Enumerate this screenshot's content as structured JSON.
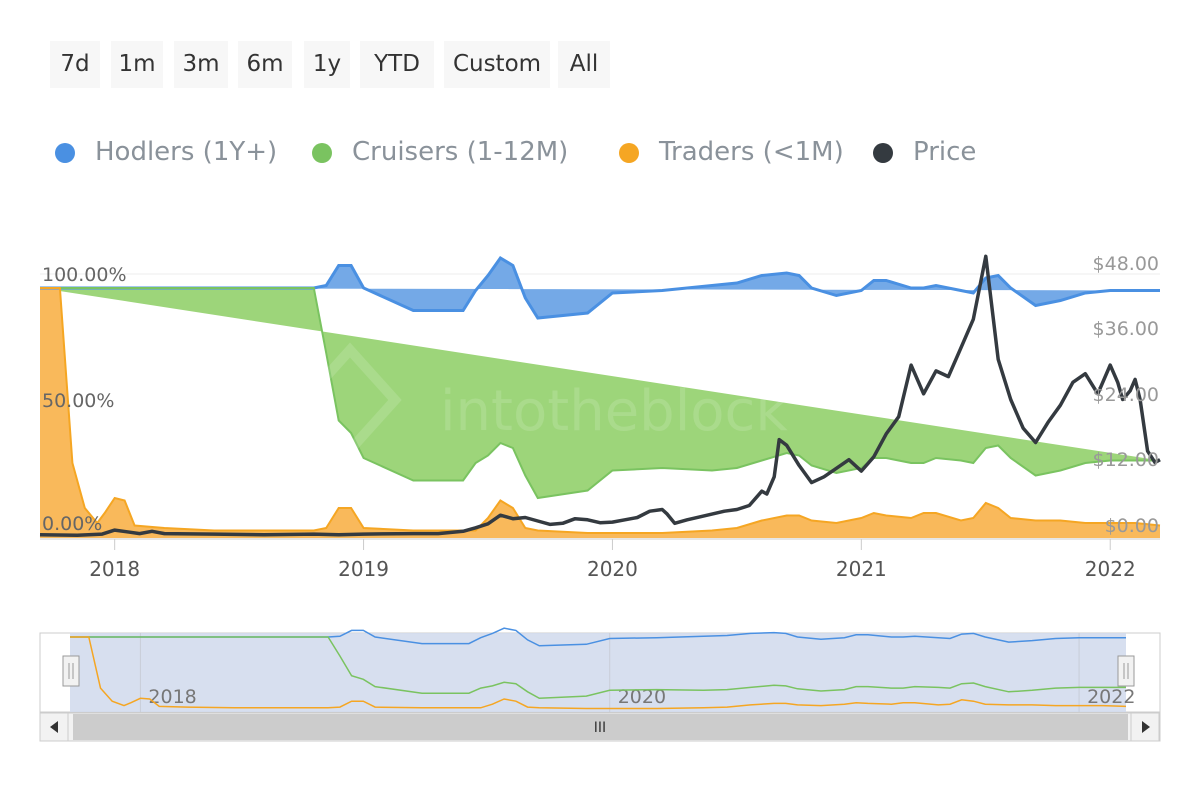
{
  "range_selector": {
    "buttons": [
      {
        "id": "7d",
        "label": "7d"
      },
      {
        "id": "1m",
        "label": "1m"
      },
      {
        "id": "3m",
        "label": "3m"
      },
      {
        "id": "6m",
        "label": "6m"
      },
      {
        "id": "1y",
        "label": "1y"
      },
      {
        "id": "ytd",
        "label": "YTD"
      },
      {
        "id": "custom",
        "label": "Custom"
      },
      {
        "id": "all",
        "label": "All"
      }
    ]
  },
  "legend": {
    "items": [
      {
        "id": "hodlers",
        "label": "Hodlers (1Y+)",
        "color": "#4a90e2"
      },
      {
        "id": "cruisers",
        "label": "Cruisers (1-12M)",
        "color": "#7ac360"
      },
      {
        "id": "traders",
        "label": "Traders (<1M)",
        "color": "#f5a623"
      },
      {
        "id": "price",
        "label": "Price",
        "color": "#343a40"
      }
    ]
  },
  "watermark": {
    "text": "intotheblock"
  },
  "colors": {
    "hodlers_fill": "#74a9e7",
    "hodlers_line": "#4a90e2",
    "cruisers_fill": "#9dd57a",
    "cruisers_line": "#7ac360",
    "traders_fill": "#f9b95b",
    "traders_line": "#f5a623",
    "price_line": "#343a40",
    "navigator_mask": "#d3dbed"
  },
  "chart_data": {
    "type": "area",
    "x_axis": {
      "ticks": [
        "2018",
        "2019",
        "2020",
        "2021",
        "2022"
      ],
      "range": [
        "2017-09",
        "2022-03"
      ]
    },
    "y_axis_left": {
      "ticks": [
        "0.00%",
        "50.00%",
        "100.00%"
      ],
      "range": [
        0,
        100
      ],
      "unit": "%"
    },
    "y_axis_right": {
      "ticks": [
        "$0.00",
        "$12.00",
        "$24.00",
        "$36.00",
        "$48.00"
      ],
      "range": [
        0,
        48
      ],
      "unit": "USD"
    },
    "stacking": "percent",
    "legend_placement": "top-left",
    "grid": false,
    "series": [
      {
        "name": "Traders (<1M)",
        "axis": "left",
        "points": [
          [
            2017.7,
            100
          ],
          [
            2017.78,
            100
          ],
          [
            2017.83,
            30
          ],
          [
            2017.88,
            12
          ],
          [
            2017.93,
            6
          ],
          [
            2017.96,
            10
          ],
          [
            2018.0,
            16
          ],
          [
            2018.04,
            15
          ],
          [
            2018.08,
            5
          ],
          [
            2018.2,
            4
          ],
          [
            2018.4,
            3
          ],
          [
            2018.6,
            3
          ],
          [
            2018.8,
            3
          ],
          [
            2018.85,
            4
          ],
          [
            2018.9,
            12
          ],
          [
            2018.95,
            12
          ],
          [
            2019.0,
            4
          ],
          [
            2019.2,
            3
          ],
          [
            2019.4,
            3
          ],
          [
            2019.45,
            3
          ],
          [
            2019.5,
            8
          ],
          [
            2019.55,
            15
          ],
          [
            2019.6,
            12
          ],
          [
            2019.65,
            4
          ],
          [
            2019.7,
            3
          ],
          [
            2019.9,
            2
          ],
          [
            2020.0,
            2
          ],
          [
            2020.2,
            2
          ],
          [
            2020.4,
            3
          ],
          [
            2020.5,
            4
          ],
          [
            2020.6,
            7
          ],
          [
            2020.7,
            9
          ],
          [
            2020.75,
            9
          ],
          [
            2020.8,
            7
          ],
          [
            2020.9,
            6
          ],
          [
            2021.0,
            8
          ],
          [
            2021.05,
            10
          ],
          [
            2021.1,
            9
          ],
          [
            2021.2,
            8
          ],
          [
            2021.25,
            10
          ],
          [
            2021.3,
            10
          ],
          [
            2021.4,
            7
          ],
          [
            2021.45,
            8
          ],
          [
            2021.5,
            14
          ],
          [
            2021.55,
            12
          ],
          [
            2021.6,
            8
          ],
          [
            2021.7,
            7
          ],
          [
            2021.8,
            7
          ],
          [
            2021.9,
            6
          ],
          [
            2022.0,
            6
          ],
          [
            2022.1,
            6
          ],
          [
            2022.2,
            5
          ]
        ]
      },
      {
        "name": "Cruisers (1-12M)",
        "axis": "left",
        "points": [
          [
            2017.7,
            0
          ],
          [
            2017.78,
            0
          ],
          [
            2017.83,
            70
          ],
          [
            2017.88,
            88
          ],
          [
            2017.93,
            94
          ],
          [
            2017.96,
            90
          ],
          [
            2018.0,
            84
          ],
          [
            2018.04,
            85
          ],
          [
            2018.08,
            95
          ],
          [
            2018.2,
            96
          ],
          [
            2018.4,
            97
          ],
          [
            2018.6,
            97
          ],
          [
            2018.65,
            97
          ],
          [
            2018.7,
            70
          ],
          [
            2018.75,
            35
          ],
          [
            2018.8,
            30
          ],
          [
            2018.85,
            28
          ],
          [
            2018.9,
            20
          ],
          [
            2018.95,
            20
          ],
          [
            2019.0,
            27
          ],
          [
            2019.2,
            25
          ],
          [
            2019.4,
            23
          ],
          [
            2019.45,
            24
          ],
          [
            2019.5,
            21
          ],
          [
            2019.55,
            13
          ],
          [
            2019.6,
            17
          ],
          [
            2019.65,
            25
          ],
          [
            2019.7,
            26
          ],
          [
            2019.9,
            24
          ],
          [
            2020.0,
            24
          ],
          [
            2020.2,
            24
          ],
          [
            2020.4,
            25
          ],
          [
            2020.5,
            24
          ],
          [
            2020.6,
            22
          ],
          [
            2020.7,
            20
          ],
          [
            2020.75,
            20
          ],
          [
            2020.8,
            22
          ],
          [
            2020.9,
            23
          ],
          [
            2021.0,
            22
          ],
          [
            2021.05,
            20
          ],
          [
            2021.1,
            22
          ],
          [
            2021.2,
            24
          ],
          [
            2021.25,
            22
          ],
          [
            2021.3,
            22
          ],
          [
            2021.4,
            25
          ],
          [
            2021.45,
            24
          ],
          [
            2021.5,
            18
          ],
          [
            2021.55,
            20
          ],
          [
            2021.6,
            24
          ],
          [
            2021.7,
            25
          ],
          [
            2021.8,
            25
          ],
          [
            2021.9,
            26
          ],
          [
            2022.0,
            26
          ],
          [
            2022.1,
            26
          ],
          [
            2022.2,
            26
          ]
        ]
      },
      {
        "name": "Hodlers (1Y+)",
        "axis": "left",
        "points": [
          [
            2017.7,
            0
          ],
          [
            2017.78,
            0
          ],
          [
            2017.83,
            0
          ],
          [
            2017.88,
            0
          ],
          [
            2017.93,
            0
          ],
          [
            2017.96,
            0
          ],
          [
            2018.0,
            0
          ],
          [
            2018.04,
            0
          ],
          [
            2018.08,
            0
          ],
          [
            2018.2,
            0
          ],
          [
            2018.4,
            0
          ],
          [
            2018.6,
            0
          ],
          [
            2018.65,
            0
          ],
          [
            2018.7,
            27
          ],
          [
            2018.75,
            62
          ],
          [
            2018.8,
            67
          ],
          [
            2018.85,
            68
          ],
          [
            2018.9,
            68
          ],
          [
            2018.95,
            68
          ],
          [
            2019.0,
            69
          ],
          [
            2019.2,
            72
          ],
          [
            2019.4,
            74
          ],
          [
            2019.45,
            73
          ],
          [
            2019.5,
            71
          ],
          [
            2019.55,
            72
          ],
          [
            2019.6,
            71
          ],
          [
            2019.65,
            71
          ],
          [
            2019.7,
            71
          ],
          [
            2019.9,
            74
          ],
          [
            2020.0,
            74
          ],
          [
            2020.2,
            74
          ],
          [
            2020.4,
            72
          ],
          [
            2020.5,
            72
          ],
          [
            2020.6,
            71
          ],
          [
            2020.7,
            71
          ],
          [
            2020.75,
            71
          ],
          [
            2020.8,
            71
          ],
          [
            2020.9,
            71
          ],
          [
            2021.0,
            70
          ],
          [
            2021.05,
            70
          ],
          [
            2021.1,
            69
          ],
          [
            2021.2,
            68
          ],
          [
            2021.25,
            68
          ],
          [
            2021.3,
            68
          ],
          [
            2021.4,
            68
          ],
          [
            2021.45,
            68
          ],
          [
            2021.5,
            68
          ],
          [
            2021.55,
            68
          ],
          [
            2021.6,
            68
          ],
          [
            2021.7,
            68
          ],
          [
            2021.8,
            68
          ],
          [
            2021.9,
            68
          ],
          [
            2022.0,
            68
          ],
          [
            2022.1,
            68
          ],
          [
            2022.2,
            69
          ]
        ]
      },
      {
        "name": "Price",
        "axis": "right",
        "points": [
          [
            2017.7,
            0.4
          ],
          [
            2017.85,
            0.3
          ],
          [
            2017.95,
            0.5
          ],
          [
            2018.0,
            1.2
          ],
          [
            2018.05,
            0.9
          ],
          [
            2018.1,
            0.6
          ],
          [
            2018.15,
            1.0
          ],
          [
            2018.2,
            0.6
          ],
          [
            2018.4,
            0.5
          ],
          [
            2018.6,
            0.4
          ],
          [
            2018.8,
            0.5
          ],
          [
            2018.9,
            0.4
          ],
          [
            2019.0,
            0.5
          ],
          [
            2019.2,
            0.6
          ],
          [
            2019.3,
            0.6
          ],
          [
            2019.4,
            1.0
          ],
          [
            2019.45,
            1.6
          ],
          [
            2019.5,
            2.3
          ],
          [
            2019.55,
            3.8
          ],
          [
            2019.6,
            3.2
          ],
          [
            2019.65,
            3.4
          ],
          [
            2019.7,
            2.8
          ],
          [
            2019.75,
            2.2
          ],
          [
            2019.8,
            2.4
          ],
          [
            2019.85,
            3.2
          ],
          [
            2019.9,
            3.0
          ],
          [
            2019.95,
            2.5
          ],
          [
            2020.0,
            2.6
          ],
          [
            2020.05,
            3.0
          ],
          [
            2020.1,
            3.4
          ],
          [
            2020.15,
            4.5
          ],
          [
            2020.2,
            4.8
          ],
          [
            2020.22,
            4.0
          ],
          [
            2020.25,
            2.4
          ],
          [
            2020.3,
            3.0
          ],
          [
            2020.35,
            3.5
          ],
          [
            2020.4,
            4.0
          ],
          [
            2020.45,
            4.5
          ],
          [
            2020.5,
            4.8
          ],
          [
            2020.55,
            5.5
          ],
          [
            2020.6,
            8.0
          ],
          [
            2020.62,
            7.5
          ],
          [
            2020.65,
            10.5
          ],
          [
            2020.67,
            17.0
          ],
          [
            2020.7,
            16.0
          ],
          [
            2020.75,
            12.5
          ],
          [
            2020.8,
            9.5
          ],
          [
            2020.85,
            10.5
          ],
          [
            2020.9,
            12.0
          ],
          [
            2020.95,
            13.5
          ],
          [
            2021.0,
            11.5
          ],
          [
            2021.05,
            14.0
          ],
          [
            2021.1,
            18.0
          ],
          [
            2021.15,
            21.0
          ],
          [
            2021.2,
            30.0
          ],
          [
            2021.25,
            25.0
          ],
          [
            2021.3,
            29.0
          ],
          [
            2021.35,
            28.0
          ],
          [
            2021.4,
            33.0
          ],
          [
            2021.45,
            38.0
          ],
          [
            2021.5,
            49.0
          ],
          [
            2021.55,
            31.0
          ],
          [
            2021.6,
            24.0
          ],
          [
            2021.65,
            19.0
          ],
          [
            2021.7,
            16.5
          ],
          [
            2021.75,
            20.0
          ],
          [
            2021.8,
            23.0
          ],
          [
            2021.85,
            27.0
          ],
          [
            2021.9,
            28.5
          ],
          [
            2021.95,
            25.0
          ],
          [
            2022.0,
            30.0
          ],
          [
            2022.03,
            27.0
          ],
          [
            2022.05,
            24.0
          ],
          [
            2022.08,
            25.5
          ],
          [
            2022.1,
            27.5
          ],
          [
            2022.12,
            24.0
          ],
          [
            2022.15,
            15.0
          ],
          [
            2022.18,
            13.0
          ],
          [
            2022.2,
            13.5
          ]
        ]
      }
    ]
  },
  "navigator": {
    "x_ticks": [
      "2018",
      "2020",
      "2022"
    ],
    "scroll_label": "III"
  }
}
